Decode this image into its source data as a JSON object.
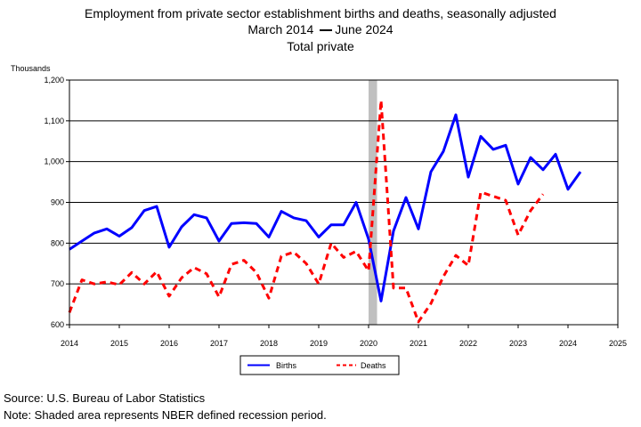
{
  "chart_data": {
    "type": "line",
    "title": "Employment from private sector establishment births and deaths, seasonally adjusted",
    "subtitle_left": "March 2014",
    "subtitle_right": "June 2024",
    "subtitle2": "Total private",
    "ylabel": "Thousands",
    "xlabel": "",
    "xlim": [
      2014,
      2025
    ],
    "ylim": [
      600,
      1200
    ],
    "x_ticks": [
      "2014",
      "2015",
      "2016",
      "2017",
      "2018",
      "2019",
      "2020",
      "2021",
      "2022",
      "2023",
      "2024",
      "2025"
    ],
    "y_ticks": [
      "600",
      "700",
      "800",
      "900",
      "1,000",
      "1,100",
      "1,200"
    ],
    "y_tick_values": [
      600,
      700,
      800,
      900,
      1000,
      1100,
      1200
    ],
    "recession": [
      2020.0,
      2020.17
    ],
    "grid": "horizontal",
    "series": [
      {
        "name": "Births",
        "color": "#0000ff",
        "style": "solid",
        "x": [
          2014.0,
          2014.25,
          2014.5,
          2014.75,
          2015.0,
          2015.25,
          2015.5,
          2015.75,
          2016.0,
          2016.25,
          2016.5,
          2016.75,
          2017.0,
          2017.25,
          2017.5,
          2017.75,
          2018.0,
          2018.25,
          2018.5,
          2018.75,
          2019.0,
          2019.25,
          2019.5,
          2019.75,
          2020.0,
          2020.25,
          2020.5,
          2020.75,
          2021.0,
          2021.25,
          2021.5,
          2021.75,
          2022.0,
          2022.25,
          2022.5,
          2022.75,
          2023.0,
          2023.25,
          2023.5,
          2023.75,
          2024.0,
          2024.25
        ],
        "values": [
          785,
          805,
          825,
          835,
          817,
          838,
          880,
          890,
          790,
          840,
          870,
          862,
          805,
          848,
          850,
          848,
          815,
          878,
          862,
          855,
          815,
          845,
          845,
          900,
          810,
          658,
          830,
          912,
          835,
          975,
          1025,
          1115,
          962,
          1062,
          1030,
          1040,
          945,
          1010,
          980,
          1018,
          932,
          975
        ]
      },
      {
        "name": "Deaths",
        "color": "#ff0000",
        "style": "dashed",
        "x": [
          2014.0,
          2014.25,
          2014.5,
          2014.75,
          2015.0,
          2015.25,
          2015.5,
          2015.75,
          2016.0,
          2016.25,
          2016.5,
          2016.75,
          2017.0,
          2017.25,
          2017.5,
          2017.75,
          2018.0,
          2018.25,
          2018.5,
          2018.75,
          2019.0,
          2019.25,
          2019.5,
          2019.75,
          2020.0,
          2020.25,
          2020.5,
          2020.75,
          2021.0,
          2021.25,
          2021.5,
          2021.75,
          2022.0,
          2022.25,
          2022.5,
          2022.75,
          2023.0,
          2023.25,
          2023.5
        ],
        "values": [
          630,
          710,
          700,
          705,
          698,
          728,
          700,
          730,
          670,
          715,
          740,
          725,
          668,
          748,
          758,
          728,
          665,
          768,
          778,
          750,
          700,
          800,
          765,
          780,
          732,
          1150,
          690,
          690,
          607,
          652,
          718,
          770,
          745,
          925,
          915,
          905,
          820,
          880,
          920
        ]
      }
    ],
    "legend": {
      "position": "bottom",
      "items": [
        "Births",
        "Deaths"
      ]
    }
  },
  "footer": {
    "source": "Source: U.S. Bureau of Labor Statistics",
    "note": "Note: Shaded area represents NBER defined recession period."
  }
}
